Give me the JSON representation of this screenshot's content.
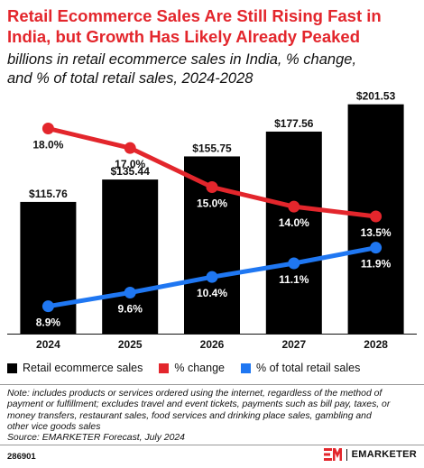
{
  "header": {
    "title_line1": "Retail Ecommerce Sales Are Still Rising Fast in",
    "title_line2": "India, but Growth Has Likely Already Peaked",
    "subtitle_line1": "billions in retail ecommerce sales in India, % change,",
    "subtitle_line2": "and % of total retail sales, 2024-2028"
  },
  "chart_data": {
    "type": "bar",
    "categories": [
      "2024",
      "2025",
      "2026",
      "2027",
      "2028"
    ],
    "bar_value_labels": [
      "$115.76",
      "$135.44",
      "$155.75",
      "$177.56",
      "$201.53"
    ],
    "series": [
      {
        "name": "Retail ecommerce sales",
        "type": "bar",
        "color": "#000000",
        "values": [
          115.76,
          135.44,
          155.75,
          177.56,
          201.53
        ]
      },
      {
        "name": "% change",
        "type": "line",
        "color": "#e3262c",
        "values": [
          18.0,
          17.0,
          15.0,
          14.0,
          13.5
        ],
        "labels": [
          "18.0%",
          "17.0%",
          "15.0%",
          "14.0%",
          "13.5%"
        ]
      },
      {
        "name": "% of total retail sales",
        "type": "line",
        "color": "#1f77f2",
        "values": [
          8.9,
          9.6,
          10.4,
          11.1,
          11.9
        ],
        "labels": [
          "8.9%",
          "9.6%",
          "10.4%",
          "11.1%",
          "11.9%"
        ]
      }
    ],
    "ylim_bar": [
      0,
      210
    ],
    "ylim_pct": [
      7.5,
      19.5
    ],
    "grid": false,
    "legend": "bottom"
  },
  "legend": {
    "items": [
      {
        "label": "Retail ecommerce sales",
        "color": "#000000"
      },
      {
        "label": "% change",
        "color": "#e3262c"
      },
      {
        "label": "% of total retail sales",
        "color": "#1f77f2"
      }
    ]
  },
  "notes": {
    "line1": "Note: includes products or services ordered using the internet, regardless of the method of",
    "line2": "payment or fulfillment; excludes travel and event tickets, payments such as bill pay, taxes, or",
    "line3": "money transfers, restaurant sales, food services and drinking place sales, gambling and",
    "line4": "other vice goods sales",
    "source": "Source: EMARKETER Forecast, July 2024"
  },
  "footer": {
    "chart_id": "286901",
    "brand": "EMARKETER"
  }
}
